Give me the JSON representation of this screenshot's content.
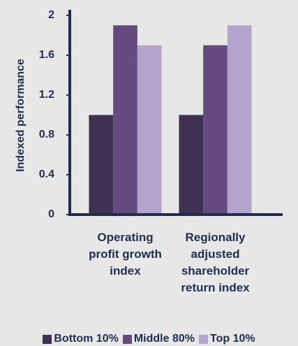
{
  "chart_data": {
    "type": "bar",
    "y_label": "Indexed performance",
    "categories": [
      "Operating profit growth index",
      "Regionally adjusted shareholder return index"
    ],
    "series": [
      {
        "name": "Bottom 10%",
        "color": "#3e3152",
        "values": [
          1.0,
          1.0
        ]
      },
      {
        "name": "Middle 80%",
        "color": "#654a7f",
        "values": [
          1.9,
          1.7
        ]
      },
      {
        "name": "Top 10%",
        "color": "#b4a3cd",
        "values": [
          1.7,
          1.9
        ]
      }
    ],
    "ylim": [
      0,
      2
    ],
    "yticks": [
      0,
      0.4,
      0.8,
      1.2,
      1.6,
      2
    ],
    "legend": "bottom"
  }
}
